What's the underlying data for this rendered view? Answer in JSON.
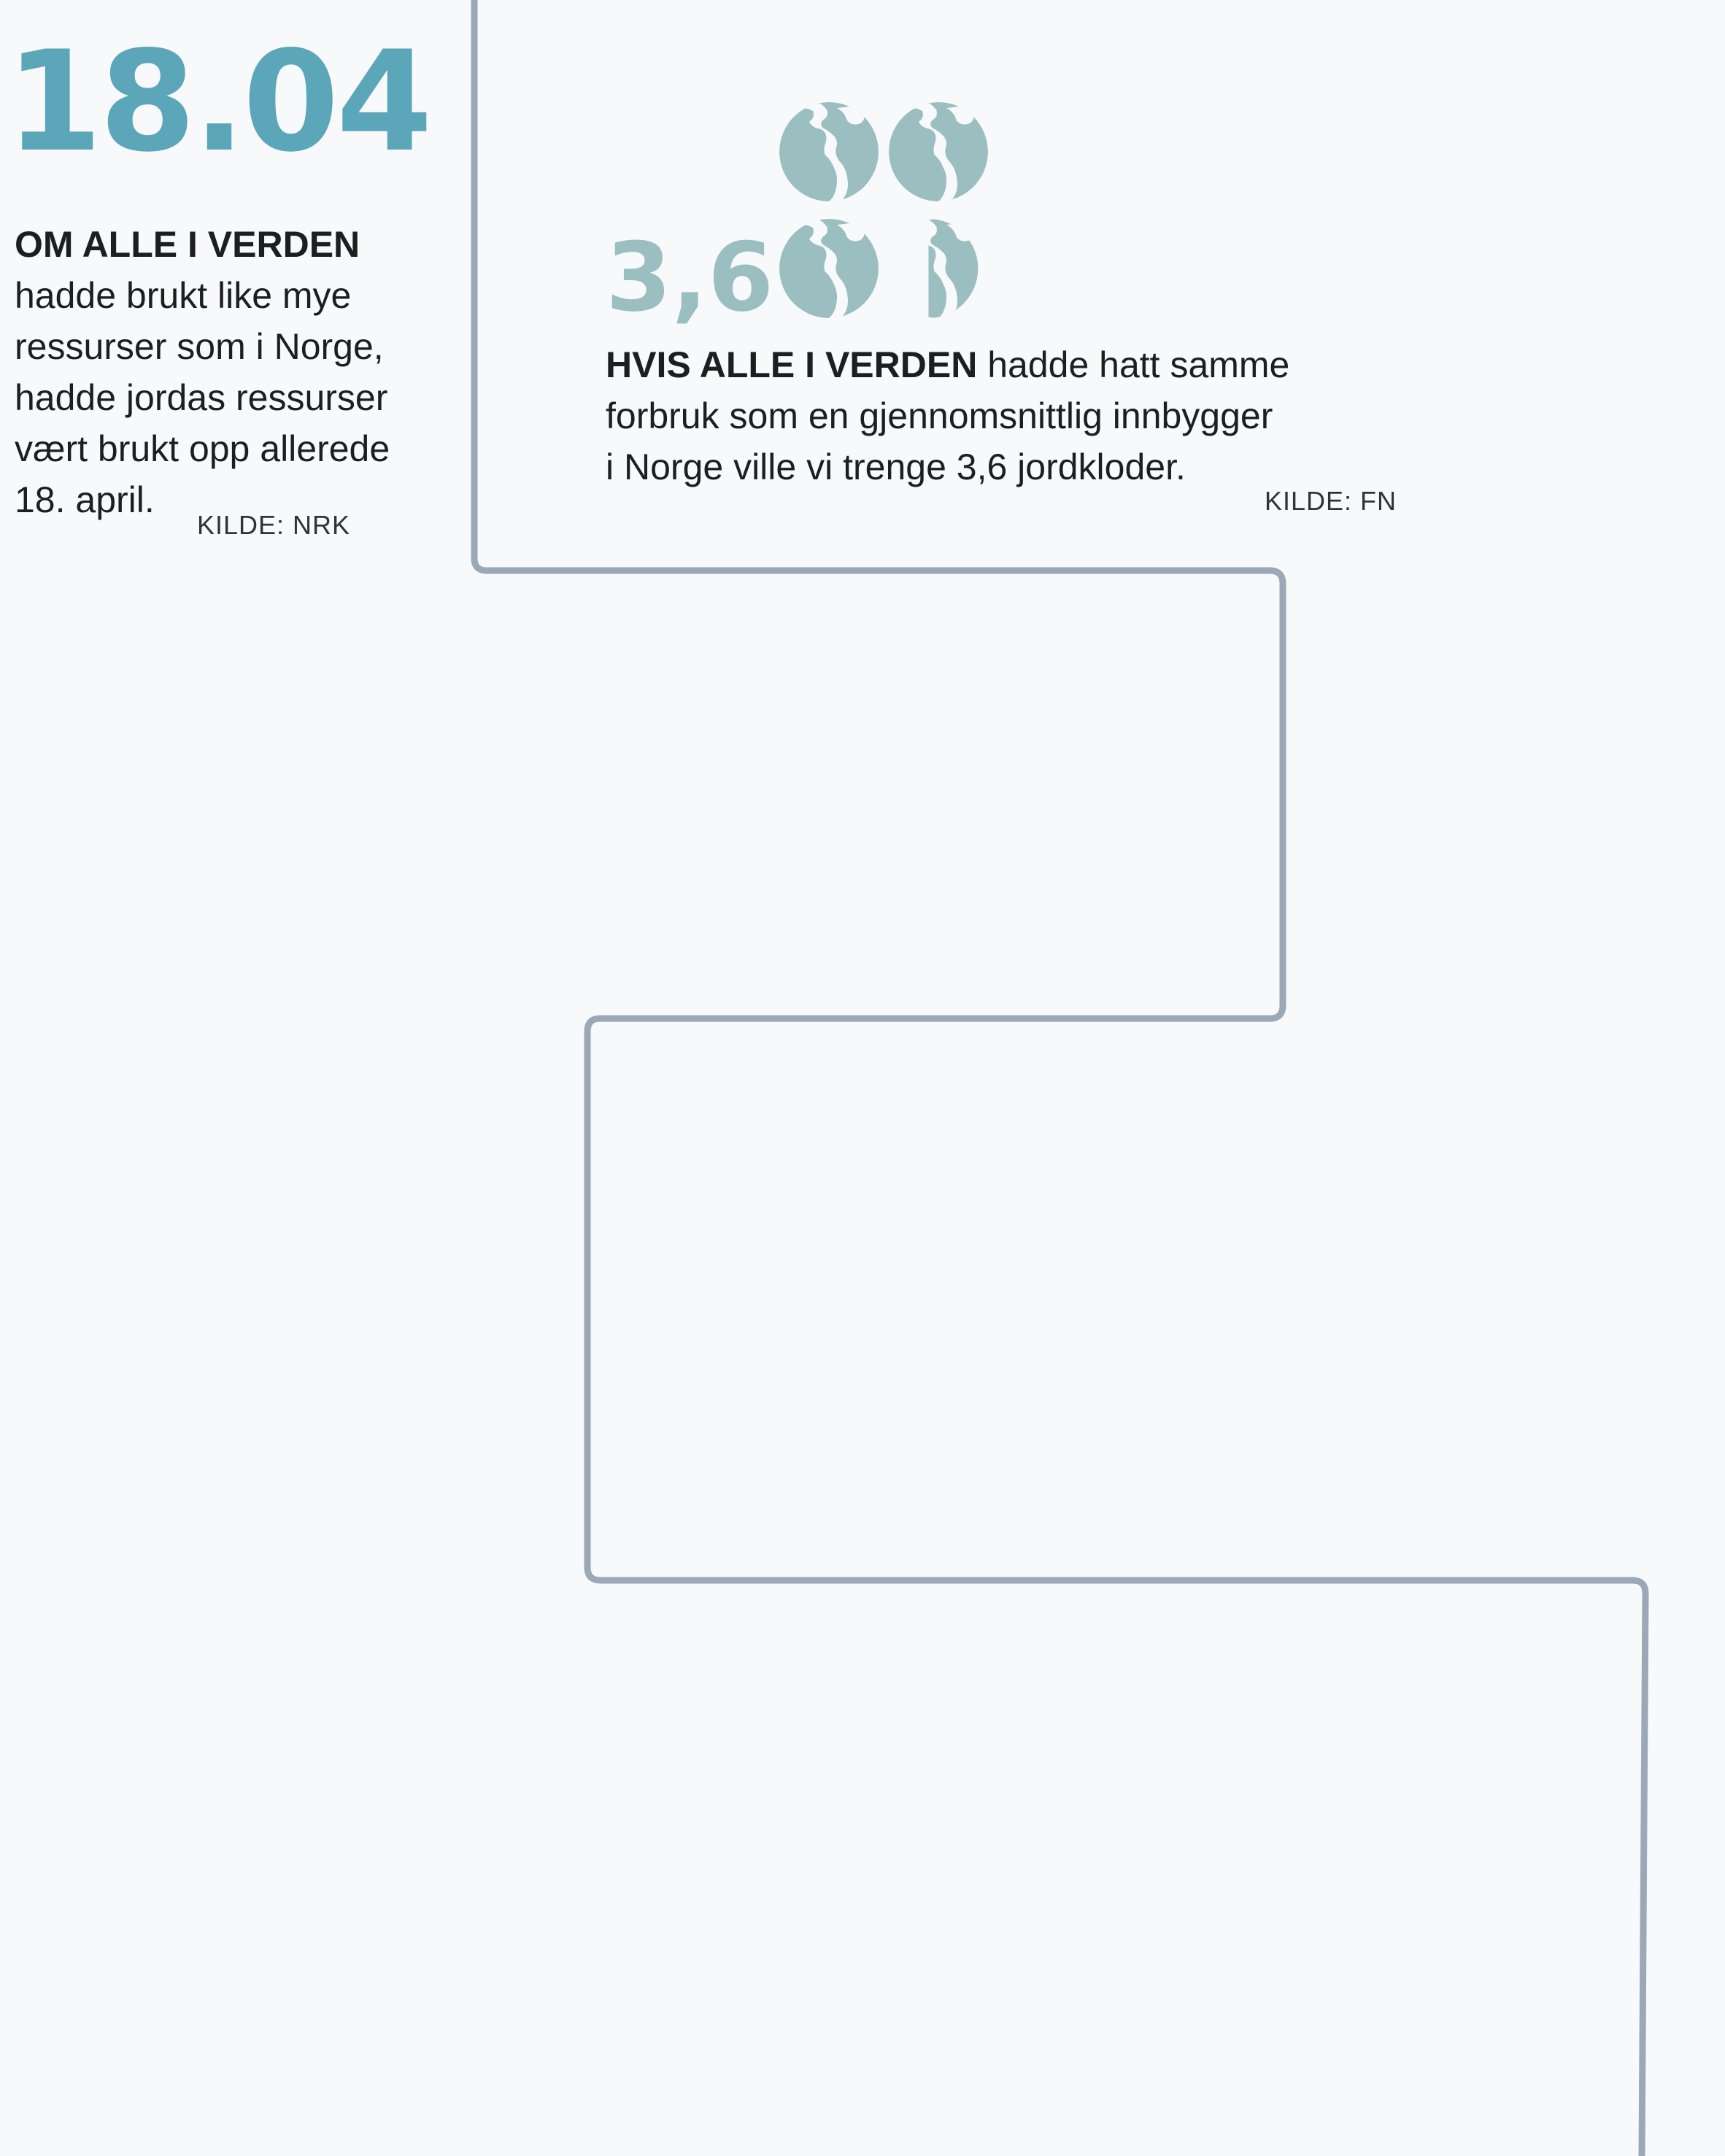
{
  "left": {
    "date": "18.04",
    "lead": "OM ALLE I VERDEN",
    "body": "hadde brukt like mye\nressurser som i Norge,\nhadde jordas ressurser\nvært brukt opp allerede\n18. april.",
    "source": "KILDE: NRK"
  },
  "right": {
    "number": "3,6",
    "lead": "HVIS ALLE I VERDEN",
    "body": " hadde hatt samme\nforbruk som en gjennomsnittlig innbygger\ni Norge ville vi trenge 3,6 jordkloder.",
    "source": "KILDE: FN",
    "globes_count": 3.6
  },
  "colors": {
    "date": "#5ba6b8",
    "number": "#9bbfc1",
    "globe": "#9bbfc1",
    "path": "#9aa8b8",
    "background": "#f7f9fb"
  },
  "icons": [
    "globe-icon",
    "globe-icon",
    "globe-icon",
    "globe-partial-icon"
  ]
}
